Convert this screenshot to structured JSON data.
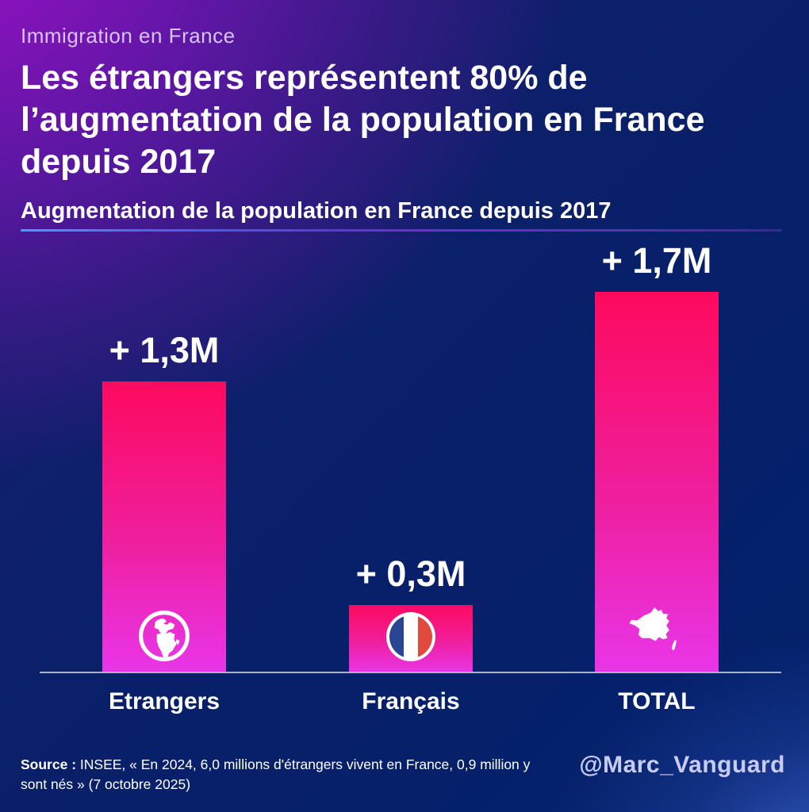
{
  "header": {
    "kicker": "Immigration en France",
    "title": "Les étrangers représentent 80% de l’augmentation de la population en France depuis 2017",
    "subtitle": "Augmentation de la population en France depuis 2017"
  },
  "chart_data": {
    "type": "bar",
    "title": "Augmentation de la population en France depuis 2017",
    "categories": [
      "Etrangers",
      "Français",
      "TOTAL"
    ],
    "values": [
      1.3,
      0.3,
      1.7
    ],
    "value_labels": [
      "+ 1,3M",
      "+ 0,3M",
      "+ 1,7M"
    ],
    "unit": "millions d'habitants",
    "ylim": [
      0,
      1.7
    ],
    "grid": false,
    "legend": "none",
    "bar_icons": [
      "globe-icon",
      "france-flag-icon",
      "france-map-icon"
    ],
    "colors": {
      "bar_gradient_top": "#fd0a5e",
      "bar_gradient_bottom": "#e935e9",
      "axis_line": "#aab3c5"
    }
  },
  "footer": {
    "source_label": "Source :",
    "source_text": " INSEE, « En 2024, 6,0 millions d'étrangers vivent en France, 0,9 million y sont nés » (7 octobre 2025)",
    "handle": "@Marc_Vanguard"
  },
  "colors": {
    "background_top_left_purple": "#9b10cb",
    "background_navy": "#02216b",
    "kicker_text": "#d8c4f4",
    "handle_text": "#c9ccf2",
    "flag_blue": "#2b4595",
    "flag_red": "#e0493e"
  }
}
